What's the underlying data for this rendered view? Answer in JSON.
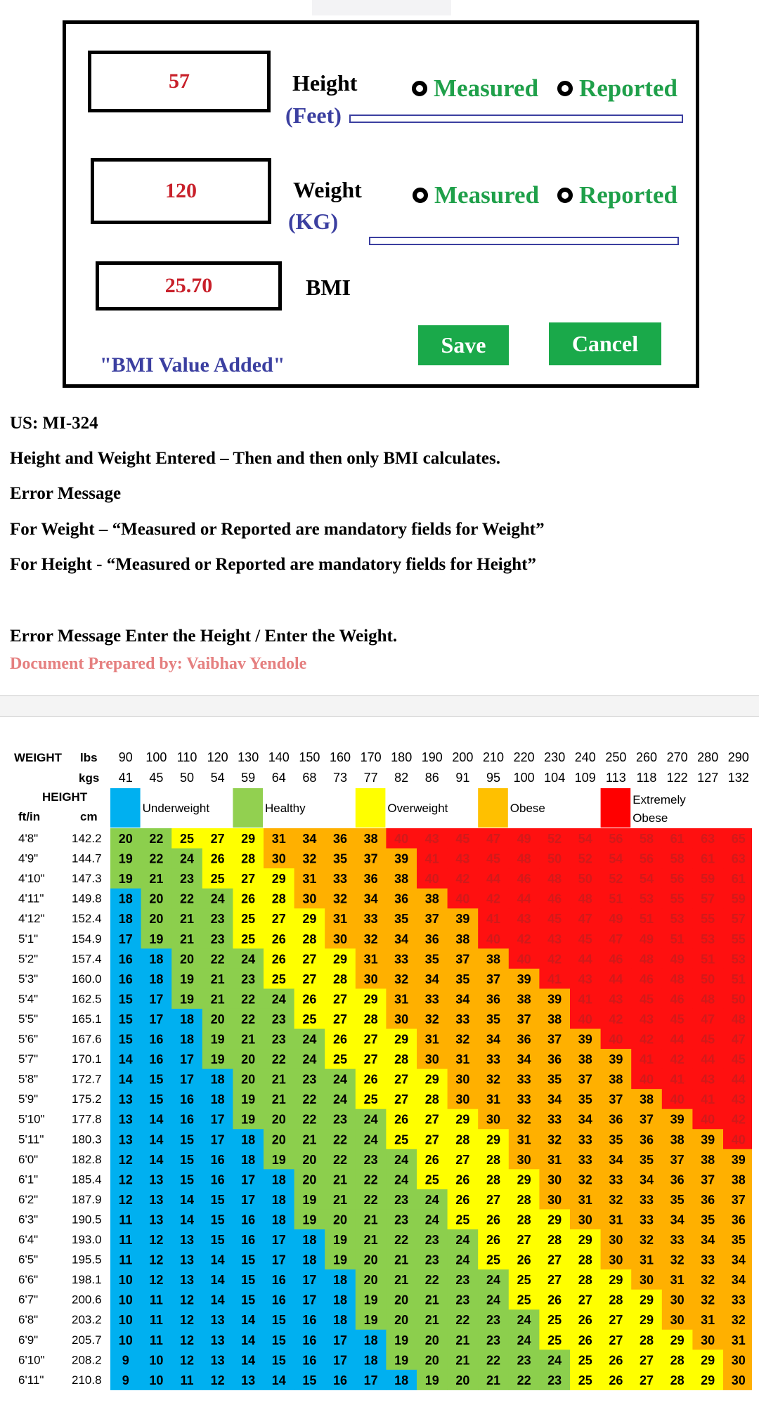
{
  "form": {
    "height": {
      "value": "57",
      "label": "Height",
      "unit": "(Feet)"
    },
    "weight": {
      "value": "120",
      "label": "Weight",
      "unit": "(KG)"
    },
    "bmi": {
      "value": "25.70",
      "label": "BMI"
    },
    "radio_measured": "Measured",
    "radio_reported": "Reported",
    "save_label": "Save",
    "cancel_label": "Cancel",
    "message": "\"BMI Value Added\""
  },
  "doc": {
    "us": "US: MI-324",
    "line1": "Height and Weight Entered – Then and then only BMI calculates.",
    "line2": "Error Message",
    "line3": "For Weight – “Measured or Reported are mandatory fields for Weight”",
    "line4": "For Height - “Measured or Reported are mandatory fields for Height”",
    "line5": "Error Message Enter the Height / Enter the Weight.",
    "prepared": "Document Prepared by: Vaibhav Yendole"
  },
  "chart_data": {
    "type": "table",
    "corner": {
      "weight": "WEIGHT",
      "lbs": "lbs",
      "kgs": "kgs",
      "height": "HEIGHT",
      "ftin": "ft/in",
      "cm": "cm"
    },
    "lbs": [
      "90",
      "100",
      "110",
      "120",
      "130",
      "140",
      "150",
      "160",
      "170",
      "180",
      "190",
      "200",
      "210",
      "220",
      "230",
      "240",
      "250",
      "260",
      "270",
      "280",
      "290"
    ],
    "kgs": [
      "41",
      "45",
      "50",
      "54",
      "59",
      "64",
      "68",
      "73",
      "77",
      "82",
      "86",
      "91",
      "95",
      "100",
      "104",
      "109",
      "113",
      "118",
      "122",
      "127",
      "132"
    ],
    "categories": [
      {
        "label": "Underweight",
        "color": "#00b0f0"
      },
      {
        "label": "Healthy",
        "color": "#92d050"
      },
      {
        "label": "Overweight",
        "color": "#ffff00"
      },
      {
        "label": "Obese",
        "color": "#ffc000"
      },
      {
        "label": "Extremely",
        "label2": "Obese",
        "color": "#ff0000"
      }
    ],
    "colors": {
      "underweight": "#00b0f0",
      "healthy": "#8ccf4d",
      "overweight": "#ffff00",
      "obese": "#ffb000",
      "extreme": "#ff1010"
    },
    "rows": [
      {
        "ft": "4'8\"",
        "cm": "142.2",
        "values": [
          20,
          22,
          25,
          27,
          29,
          31,
          34,
          36,
          38,
          40,
          43,
          45,
          47,
          49,
          52,
          54,
          56,
          58,
          61,
          63,
          65
        ]
      },
      {
        "ft": "4'9\"",
        "cm": "144.7",
        "values": [
          19,
          22,
          24,
          26,
          28,
          30,
          32,
          35,
          37,
          39,
          41,
          43,
          45,
          48,
          50,
          52,
          54,
          56,
          58,
          61,
          63
        ]
      },
      {
        "ft": "4'10\"",
        "cm": "147.3",
        "values": [
          19,
          21,
          23,
          25,
          27,
          29,
          31,
          33,
          36,
          38,
          40,
          42,
          44,
          46,
          48,
          50,
          52,
          54,
          56,
          59,
          61
        ]
      },
      {
        "ft": "4'11\"",
        "cm": "149.8",
        "values": [
          18,
          20,
          22,
          24,
          26,
          28,
          30,
          32,
          34,
          36,
          38,
          40,
          42,
          44,
          46,
          48,
          51,
          53,
          55,
          57,
          59
        ]
      },
      {
        "ft": "4'12\"",
        "cm": "152.4",
        "values": [
          18,
          20,
          21,
          23,
          25,
          27,
          29,
          31,
          33,
          35,
          37,
          39,
          41,
          43,
          45,
          47,
          49,
          51,
          53,
          55,
          57
        ]
      },
      {
        "ft": "5'1\"",
        "cm": "154.9",
        "values": [
          17,
          19,
          21,
          23,
          25,
          26,
          28,
          30,
          32,
          34,
          36,
          38,
          40,
          42,
          43,
          45,
          47,
          49,
          51,
          53,
          55
        ]
      },
      {
        "ft": "5'2\"",
        "cm": "157.4",
        "values": [
          16,
          18,
          20,
          22,
          24,
          26,
          27,
          29,
          31,
          33,
          35,
          37,
          38,
          40,
          42,
          44,
          46,
          48,
          49,
          51,
          53
        ]
      },
      {
        "ft": "5'3\"",
        "cm": "160.0",
        "values": [
          16,
          18,
          19,
          21,
          23,
          25,
          27,
          28,
          30,
          32,
          34,
          35,
          37,
          39,
          41,
          43,
          44,
          46,
          48,
          50,
          51
        ]
      },
      {
        "ft": "5'4\"",
        "cm": "162.5",
        "values": [
          15,
          17,
          19,
          21,
          22,
          24,
          26,
          27,
          29,
          31,
          33,
          34,
          36,
          38,
          39,
          41,
          43,
          45,
          46,
          48,
          50
        ]
      },
      {
        "ft": "5'5\"",
        "cm": "165.1",
        "values": [
          15,
          17,
          18,
          20,
          22,
          23,
          25,
          27,
          28,
          30,
          32,
          33,
          35,
          37,
          38,
          40,
          42,
          43,
          45,
          47,
          48
        ]
      },
      {
        "ft": "5'6\"",
        "cm": "167.6",
        "values": [
          15,
          16,
          18,
          19,
          21,
          23,
          24,
          26,
          27,
          29,
          31,
          32,
          34,
          36,
          37,
          39,
          40,
          42,
          44,
          45,
          47
        ]
      },
      {
        "ft": "5'7\"",
        "cm": "170.1",
        "values": [
          14,
          16,
          17,
          19,
          20,
          22,
          24,
          25,
          27,
          28,
          30,
          31,
          33,
          34,
          36,
          38,
          39,
          41,
          42,
          44,
          45
        ]
      },
      {
        "ft": "5'8\"",
        "cm": "172.7",
        "values": [
          14,
          15,
          17,
          18,
          20,
          21,
          23,
          24,
          26,
          27,
          29,
          30,
          32,
          33,
          35,
          37,
          38,
          40,
          41,
          43,
          44
        ]
      },
      {
        "ft": "5'9\"",
        "cm": "175.2",
        "values": [
          13,
          15,
          16,
          18,
          19,
          21,
          22,
          24,
          25,
          27,
          28,
          30,
          31,
          33,
          34,
          35,
          37,
          38,
          40,
          41,
          43
        ]
      },
      {
        "ft": "5'10\"",
        "cm": "177.8",
        "values": [
          13,
          14,
          16,
          17,
          19,
          20,
          22,
          23,
          24,
          26,
          27,
          29,
          30,
          32,
          33,
          34,
          36,
          37,
          39,
          40,
          42
        ]
      },
      {
        "ft": "5'11\"",
        "cm": "180.3",
        "values": [
          13,
          14,
          15,
          17,
          18,
          20,
          21,
          22,
          24,
          25,
          27,
          28,
          29,
          31,
          32,
          33,
          35,
          36,
          38,
          39,
          40
        ]
      },
      {
        "ft": "6'0\"",
        "cm": "182.8",
        "values": [
          12,
          14,
          15,
          16,
          18,
          19,
          20,
          22,
          23,
          24,
          26,
          27,
          28,
          30,
          31,
          33,
          34,
          35,
          37,
          38,
          39
        ]
      },
      {
        "ft": "6'1\"",
        "cm": "185.4",
        "values": [
          12,
          13,
          15,
          16,
          17,
          18,
          20,
          21,
          22,
          24,
          25,
          26,
          28,
          29,
          30,
          32,
          33,
          34,
          36,
          37,
          38
        ]
      },
      {
        "ft": "6'2\"",
        "cm": "187.9",
        "values": [
          12,
          13,
          14,
          15,
          17,
          18,
          19,
          21,
          22,
          23,
          24,
          26,
          27,
          28,
          30,
          31,
          32,
          33,
          35,
          36,
          37
        ]
      },
      {
        "ft": "6'3\"",
        "cm": "190.5",
        "values": [
          11,
          13,
          14,
          15,
          16,
          18,
          19,
          20,
          21,
          23,
          24,
          25,
          26,
          28,
          29,
          30,
          31,
          33,
          34,
          35,
          36
        ]
      },
      {
        "ft": "6'4\"",
        "cm": "193.0",
        "values": [
          11,
          12,
          13,
          15,
          16,
          17,
          18,
          19,
          21,
          22,
          23,
          24,
          26,
          27,
          28,
          29,
          30,
          32,
          33,
          34,
          35
        ]
      },
      {
        "ft": "6'5\"",
        "cm": "195.5",
        "values": [
          11,
          12,
          13,
          14,
          15,
          17,
          18,
          19,
          20,
          21,
          23,
          24,
          25,
          26,
          27,
          28,
          30,
          31,
          32,
          33,
          34
        ]
      },
      {
        "ft": "6'6\"",
        "cm": "198.1",
        "values": [
          10,
          12,
          13,
          14,
          15,
          16,
          17,
          18,
          20,
          21,
          22,
          23,
          24,
          25,
          27,
          28,
          29,
          30,
          31,
          32,
          34
        ]
      },
      {
        "ft": "6'7\"",
        "cm": "200.6",
        "values": [
          10,
          11,
          12,
          14,
          15,
          16,
          17,
          18,
          19,
          20,
          21,
          23,
          24,
          25,
          26,
          27,
          28,
          29,
          30,
          32,
          33
        ]
      },
      {
        "ft": "6'8\"",
        "cm": "203.2",
        "values": [
          10,
          11,
          12,
          13,
          14,
          15,
          16,
          18,
          19,
          20,
          21,
          22,
          23,
          24,
          25,
          26,
          27,
          29,
          30,
          31,
          32
        ]
      },
      {
        "ft": "6'9\"",
        "cm": "205.7",
        "values": [
          10,
          11,
          12,
          13,
          14,
          15,
          16,
          17,
          18,
          19,
          20,
          21,
          23,
          24,
          25,
          26,
          27,
          28,
          29,
          30,
          31
        ]
      },
      {
        "ft": "6'10\"",
        "cm": "208.2",
        "values": [
          9,
          10,
          12,
          13,
          14,
          15,
          16,
          17,
          18,
          19,
          20,
          21,
          22,
          23,
          24,
          25,
          26,
          27,
          28,
          29,
          30
        ]
      },
      {
        "ft": "6'11\"",
        "cm": "210.8",
        "values": [
          9,
          10,
          11,
          12,
          13,
          14,
          15,
          16,
          17,
          18,
          19,
          20,
          21,
          22,
          23,
          25,
          26,
          27,
          28,
          29,
          30
        ]
      }
    ]
  }
}
